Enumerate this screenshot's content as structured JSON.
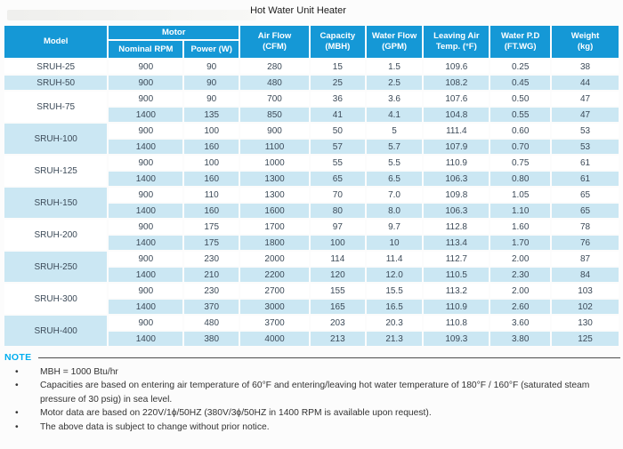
{
  "title": "Hot Water Unit Heater",
  "table": {
    "header": {
      "model": "Model",
      "motor": "Motor",
      "nominal_rpm": "Nominal RPM",
      "power": "Power (W)",
      "air_flow": "Air Flow\n(CFM)",
      "capacity": "Capacity\n(MBH)",
      "water_flow": "Water Flow\n(GPM)",
      "leaving_air": "Leaving Air\nTemp. (°F)",
      "water_pd": "Water P.D\n(FT.WG)",
      "weight": "Weight\n(kg)"
    },
    "groups": [
      {
        "model": "SRUH-25",
        "rows": [
          [
            "900",
            "90",
            "280",
            "15",
            "1.5",
            "109.6",
            "0.25",
            "38"
          ]
        ]
      },
      {
        "model": "SRUH-50",
        "rows": [
          [
            "900",
            "90",
            "480",
            "25",
            "2.5",
            "108.2",
            "0.45",
            "44"
          ]
        ]
      },
      {
        "model": "SRUH-75",
        "rows": [
          [
            "900",
            "90",
            "700",
            "36",
            "3.6",
            "107.6",
            "0.50",
            "47"
          ],
          [
            "1400",
            "135",
            "850",
            "41",
            "4.1",
            "104.8",
            "0.55",
            "47"
          ]
        ]
      },
      {
        "model": "SRUH-100",
        "rows": [
          [
            "900",
            "100",
            "900",
            "50",
            "5",
            "111.4",
            "0.60",
            "53"
          ],
          [
            "1400",
            "160",
            "1100",
            "57",
            "5.7",
            "107.9",
            "0.70",
            "53"
          ]
        ]
      },
      {
        "model": "SRUH-125",
        "rows": [
          [
            "900",
            "100",
            "1000",
            "55",
            "5.5",
            "110.9",
            "0.75",
            "61"
          ],
          [
            "1400",
            "160",
            "1300",
            "65",
            "6.5",
            "106.3",
            "0.80",
            "61"
          ]
        ]
      },
      {
        "model": "SRUH-150",
        "rows": [
          [
            "900",
            "110",
            "1300",
            "70",
            "7.0",
            "109.8",
            "1.05",
            "65"
          ],
          [
            "1400",
            "160",
            "1600",
            "80",
            "8.0",
            "106.3",
            "1.10",
            "65"
          ]
        ]
      },
      {
        "model": "SRUH-200",
        "rows": [
          [
            "900",
            "175",
            "1700",
            "97",
            "9.7",
            "112.8",
            "1.60",
            "78"
          ],
          [
            "1400",
            "175",
            "1800",
            "100",
            "10",
            "113.4",
            "1.70",
            "76"
          ]
        ]
      },
      {
        "model": "SRUH-250",
        "rows": [
          [
            "900",
            "230",
            "2000",
            "114",
            "11.4",
            "112.7",
            "2.00",
            "87"
          ],
          [
            "1400",
            "210",
            "2200",
            "120",
            "12.0",
            "110.5",
            "2.30",
            "84"
          ]
        ]
      },
      {
        "model": "SRUH-300",
        "rows": [
          [
            "900",
            "230",
            "2700",
            "155",
            "15.5",
            "113.2",
            "2.00",
            "103"
          ],
          [
            "1400",
            "370",
            "3000",
            "165",
            "16.5",
            "110.9",
            "2.60",
            "102"
          ]
        ]
      },
      {
        "model": "SRUH-400",
        "rows": [
          [
            "900",
            "480",
            "3700",
            "203",
            "20.3",
            "110.8",
            "3.60",
            "130"
          ],
          [
            "1400",
            "380",
            "4000",
            "213",
            "21.3",
            "109.3",
            "3.80",
            "125"
          ]
        ]
      }
    ]
  },
  "notes": {
    "label": "NOTE",
    "items": [
      "MBH = 1000 Btu/hr",
      "Capacities are based on entering air temperature of 60°F and entering/leaving hot water temperature of 180°F / 160°F (saturated steam pressure of 30 psig) in sea level.",
      "Motor data are based on 220V/1ϕ/50HZ (380V/3ϕ/50HZ in 1400 RPM is available upon request).",
      "The above data is subject to change without prior notice."
    ]
  },
  "colors": {
    "header_bg": "#1598D6",
    "header_text": "#FFFFFF",
    "stripe_bg": "#CBE7F3",
    "cell_text": "#3C4A58",
    "note_label": "#00AEEF"
  }
}
